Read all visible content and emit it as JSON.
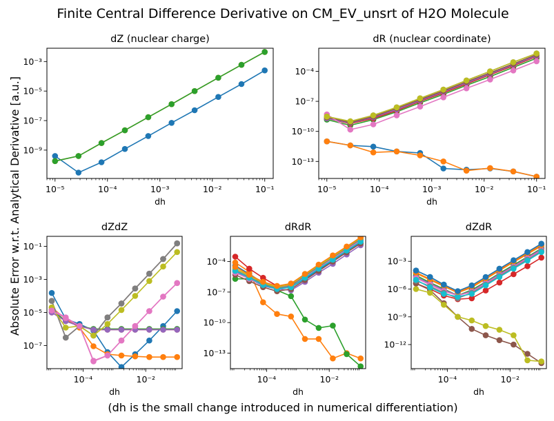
{
  "figure": {
    "suptitle": "Finite Central Difference Derivative on CM_EV_unsrt of H2O Molecule",
    "ylabel": "Absolute Error w.r.t. Analytical Derivative [a.u.]",
    "caption": "(dh is the small change introduced in numerical differentiation)"
  },
  "chart_data": [
    {
      "type": "line",
      "title": "dZ (nuclear charge)",
      "xlabel": "dh",
      "xscale": "log",
      "yscale": "log",
      "xlim": [
        7e-06,
        0.145
      ],
      "ylim": [
        1.2e-11,
        0.008
      ],
      "xticks": [
        1e-05,
        0.0001,
        0.001,
        0.01,
        0.1
      ],
      "xticklabels": [
        "10⁻⁵",
        "10⁻⁴",
        "10⁻³",
        "10⁻²",
        "10⁻¹"
      ],
      "yticks": [
        1e-09,
        1e-07,
        1e-05,
        0.001
      ],
      "yticklabels": [
        "10⁻⁹",
        "10⁻⁷",
        "10⁻⁵",
        "10⁻³"
      ],
      "x": [
        1e-05,
        2.8e-05,
        7.7e-05,
        0.000215,
        0.0006,
        0.00167,
        0.0046,
        0.013,
        0.036,
        0.1
      ],
      "series": [
        {
          "color": "#1f77b4",
          "values": [
            4e-10,
            3e-11,
            1.5e-10,
            1.2e-09,
            9e-09,
            7e-08,
            5e-07,
            4e-06,
            3e-05,
            0.00025
          ]
        },
        {
          "color": "#ff7f0e",
          "values": [
            1.8e-10,
            4e-10,
            3e-09,
            2.2e-08,
            1.7e-07,
            1.3e-06,
            1e-05,
            8e-05,
            0.0006,
            0.0045
          ]
        },
        {
          "color": "#2ca02c",
          "values": [
            1.8e-10,
            4e-10,
            3e-09,
            2.2e-08,
            1.7e-07,
            1.3e-06,
            1e-05,
            8e-05,
            0.0006,
            0.0045
          ]
        }
      ]
    },
    {
      "type": "line",
      "title": "dR (nuclear coordinate)",
      "xlabel": "dh",
      "xscale": "log",
      "yscale": "log",
      "xlim": [
        7e-06,
        0.145
      ],
      "ylim": [
        2e-15,
        0.02
      ],
      "xticks": [
        1e-05,
        0.0001,
        0.001,
        0.01,
        0.1
      ],
      "xticklabels": [
        "10⁻⁵",
        "10⁻⁴",
        "10⁻³",
        "10⁻²",
        "10⁻¹"
      ],
      "yticks": [
        1e-13,
        1e-10,
        1e-07,
        0.0001
      ],
      "yticklabels": [
        "10⁻¹³",
        "10⁻¹⁰",
        "10⁻⁷",
        "10⁻⁴"
      ],
      "x": [
        1e-05,
        2.8e-05,
        7.7e-05,
        0.000215,
        0.0006,
        0.00167,
        0.0046,
        0.013,
        0.036,
        0.1
      ],
      "series": [
        {
          "color": "#1f77b4",
          "values": [
            1e-11,
            4e-12,
            3e-12,
            1e-12,
            7e-13,
            2e-14,
            1.5e-14,
            2e-14,
            1e-14,
            3e-15
          ]
        },
        {
          "color": "#ff7f0e",
          "values": [
            1e-11,
            4e-12,
            8e-13,
            1e-12,
            4e-13,
            1e-13,
            1.2e-14,
            2.2e-14,
            1e-14,
            3e-15
          ]
        },
        {
          "color": "#2ca02c",
          "values": [
            1.5e-09,
            4e-10,
            1.5e-09,
            9e-09,
            7e-08,
            5e-07,
            4e-06,
            3e-05,
            0.00025,
            0.002
          ]
        },
        {
          "color": "#d62728",
          "values": [
            2e-09,
            6e-10,
            2e-09,
            1.2e-08,
            1e-07,
            7e-07,
            5.5e-06,
            4.5e-05,
            0.00035,
            0.003
          ]
        },
        {
          "color": "#9467bd",
          "values": [
            2e-09,
            7e-10,
            2.5e-09,
            1.5e-08,
            1.2e-07,
            9e-07,
            7e-06,
            5.5e-05,
            0.00045,
            0.0035
          ]
        },
        {
          "color": "#8c564b",
          "values": [
            2.5e-09,
            8e-10,
            3e-09,
            2e-08,
            1.5e-07,
            1.1e-06,
            9e-06,
            7e-05,
            0.00055,
            0.0045
          ]
        },
        {
          "color": "#e377c2",
          "values": [
            5e-09,
            1.5e-10,
            5e-10,
            4e-09,
            3e-08,
            2.5e-07,
            2e-06,
            1.5e-05,
            0.00012,
            0.001
          ]
        },
        {
          "color": "#7f7f7f",
          "values": [
            3e-09,
            1e-09,
            4e-09,
            2.5e-08,
            2e-07,
            1.5e-06,
            1.2e-05,
            0.0001,
            0.0008,
            0.006
          ]
        },
        {
          "color": "#bcbd22",
          "values": [
            3e-09,
            1e-09,
            4e-09,
            2.5e-08,
            2e-07,
            1.5e-06,
            1.2e-05,
            0.0001,
            0.0008,
            0.006
          ]
        }
      ]
    },
    {
      "type": "line",
      "title": "dZdZ",
      "xlabel": "dh",
      "xscale": "log",
      "yscale": "log",
      "xlim": [
        7e-06,
        0.145
      ],
      "ylim": [
        4e-09,
        0.4
      ],
      "xticks": [
        0.0001,
        0.01
      ],
      "xticklabels": [
        "10⁻⁴",
        "10⁻²"
      ],
      "yticks": [
        1e-07,
        1e-05,
        0.001,
        0.1
      ],
      "yticklabels": [
        "10⁻⁷",
        "10⁻⁵",
        "10⁻³",
        "10⁻¹"
      ],
      "x": [
        1e-05,
        2.8e-05,
        7.7e-05,
        0.000215,
        0.0006,
        0.00167,
        0.0046,
        0.013,
        0.036,
        0.1
      ],
      "series": [
        {
          "color": "#1f77b4",
          "values": [
            0.00015,
            4e-06,
            2e-06,
            8e-07,
            4e-08,
            5e-09,
            3e-08,
            2e-07,
            1.5e-06,
            1.2e-05
          ]
        },
        {
          "color": "#ff7f0e",
          "values": [
            2e-05,
            4e-06,
            1.2e-06,
            9e-08,
            3e-08,
            2.5e-08,
            2.2e-08,
            2e-08,
            2e-08,
            2e-08
          ]
        },
        {
          "color": "#2ca02c",
          "values": [
            1.5e-05,
            3e-06,
            1.5e-06,
            1e-06,
            1e-06,
            1e-06,
            1e-06,
            1e-06,
            1e-06,
            1e-06
          ]
        },
        {
          "color": "#d62728",
          "values": [
            1e-05,
            3e-06,
            1.5e-06,
            9e-07,
            9e-07,
            9e-07,
            9e-07,
            9e-07,
            9e-07,
            9e-07
          ]
        },
        {
          "color": "#9467bd",
          "values": [
            1e-05,
            3e-06,
            1.5e-06,
            9e-07,
            9e-07,
            9e-07,
            9e-07,
            9e-07,
            9e-07,
            9e-07
          ]
        },
        {
          "color": "#8c564b",
          "values": [
            5e-05,
            3e-07,
            1.5e-06,
            4e-07,
            5e-06,
            3.5e-05,
            0.00028,
            0.0022,
            0.017,
            0.15
          ]
        },
        {
          "color": "#e377c2",
          "values": [
            1.5e-05,
            5e-06,
            1.5e-06,
            1.2e-08,
            2.5e-08,
            2e-07,
            1.5e-06,
            1.2e-05,
            9e-05,
            0.0006
          ]
        },
        {
          "color": "#7f7f7f",
          "values": [
            5e-05,
            3e-07,
            1.5e-06,
            4e-07,
            5e-06,
            3.5e-05,
            0.00028,
            0.0022,
            0.017,
            0.15
          ]
        },
        {
          "color": "#bcbd22",
          "values": [
            2e-05,
            1.2e-06,
            1.5e-06,
            4e-07,
            2e-06,
            1.4e-05,
            0.0001,
            0.0008,
            0.006,
            0.045
          ]
        },
        {
          "color": "#e377c2",
          "values": [
            1.3e-05,
            4.5e-06,
            1.5e-06,
            1.1e-08,
            2.5e-08,
            2e-07,
            1.5e-06,
            1.2e-05,
            9e-05,
            0.0006
          ]
        }
      ]
    },
    {
      "type": "line",
      "title": "dRdR",
      "xlabel": "dh",
      "xscale": "log",
      "yscale": "log",
      "xlim": [
        7e-06,
        0.145
      ],
      "ylim": [
        3e-15,
        0.03
      ],
      "xticks": [
        0.0001,
        0.01
      ],
      "xticklabels": [
        "10⁻⁴",
        "10⁻²"
      ],
      "yticks": [
        1e-13,
        1e-10,
        1e-07,
        0.0001
      ],
      "yticklabels": [
        "10⁻¹³",
        "10⁻¹⁰",
        "10⁻⁷",
        "10⁻⁴"
      ],
      "x": [
        1e-05,
        2.8e-05,
        7.7e-05,
        0.000215,
        0.0006,
        0.00167,
        0.0046,
        0.013,
        0.036,
        0.1
      ],
      "series": [
        {
          "color": "#1f77b4",
          "values": [
            4e-05,
            6e-06,
            8e-07,
            2e-07,
            3e-07,
            2e-06,
            1.5e-05,
            0.00012,
            0.0009,
            0.007
          ]
        },
        {
          "color": "#ff7f0e",
          "values": [
            8e-05,
            1e-05,
            1e-08,
            7e-10,
            4e-10,
            2.5e-12,
            2.5e-12,
            3e-14,
            1e-13,
            3e-14
          ]
        },
        {
          "color": "#2ca02c",
          "values": [
            2e-06,
            2e-06,
            1e-06,
            1.5e-07,
            4e-08,
            2e-10,
            3e-11,
            5e-11,
            8e-14,
            5e-15
          ]
        },
        {
          "color": "#d62728",
          "values": [
            0.0003,
            2e-05,
            2.5e-06,
            4e-07,
            5e-07,
            3e-06,
            2.5e-05,
            0.0002,
            0.0015,
            0.012
          ]
        },
        {
          "color": "#9467bd",
          "values": [
            1e-05,
            2e-06,
            4e-07,
            2e-07,
            1.5e-07,
            1e-06,
            8e-06,
            6e-05,
            0.0005,
            0.004
          ]
        },
        {
          "color": "#8c564b",
          "values": [
            5e-06,
            1.2e-06,
            3e-07,
            1.2e-07,
            2e-07,
            1.5e-06,
            1.2e-05,
            0.0001,
            0.0008,
            0.006
          ]
        },
        {
          "color": "#e377c2",
          "values": [
            8e-06,
            2e-06,
            5e-07,
            3e-07,
            4e-07,
            3e-06,
            2.5e-05,
            0.0002,
            0.0015,
            0.012
          ]
        },
        {
          "color": "#7f7f7f",
          "values": [
            1.5e-05,
            3e-06,
            6e-07,
            2.5e-07,
            4e-07,
            4e-06,
            3e-05,
            0.00025,
            0.002,
            0.015
          ]
        },
        {
          "color": "#bcbd22",
          "values": [
            2e-05,
            4e-06,
            8e-07,
            3e-07,
            6e-07,
            5e-06,
            4e-05,
            0.0003,
            0.0025,
            0.02
          ]
        },
        {
          "color": "#17becf",
          "values": [
            1.2e-05,
            2.5e-06,
            5e-07,
            2e-07,
            3e-07,
            2.5e-06,
            2e-05,
            0.00015,
            0.0012,
            0.009
          ]
        },
        {
          "color": "#ff7f0e",
          "values": [
            3e-05,
            5e-06,
            1e-06,
            4e-07,
            7e-07,
            6e-06,
            5e-05,
            0.0004,
            0.003,
            0.024
          ]
        }
      ]
    },
    {
      "type": "line",
      "title": "dZdR",
      "xlabel": "dh",
      "xscale": "log",
      "yscale": "log",
      "xlim": [
        7e-06,
        0.145
      ],
      "ylim": [
        2.5e-15,
        0.5
      ],
      "xticks": [
        0.0001,
        0.01
      ],
      "xticklabels": [
        "10⁻⁴",
        "10⁻²"
      ],
      "yticks": [
        1e-12,
        1e-09,
        1e-06,
        0.001
      ],
      "yticklabels": [
        "10⁻¹²",
        "10⁻⁹",
        "10⁻⁶",
        "10⁻³"
      ],
      "x": [
        1e-05,
        2.8e-05,
        7.7e-05,
        0.000215,
        0.0006,
        0.00167,
        0.0046,
        0.013,
        0.036,
        0.1
      ],
      "series": [
        {
          "color": "#1f77b4",
          "values": [
            0.0001,
            2e-05,
            3e-06,
            5e-07,
            2e-06,
            1.5e-05,
            0.00012,
            0.001,
            0.008,
            0.06
          ]
        },
        {
          "color": "#ff7f0e",
          "values": [
            5e-05,
            1e-05,
            2e-06,
            4e-07,
            1.5e-06,
            1.2e-05,
            0.0001,
            0.0008,
            0.006,
            0.045
          ]
        },
        {
          "color": "#2ca02c",
          "values": [
            3e-05,
            5e-06,
            1e-06,
            2e-07,
            8e-07,
            6e-06,
            5e-05,
            0.0004,
            0.003,
            0.025
          ]
        },
        {
          "color": "#d62728",
          "values": [
            4e-06,
            1e-06,
            2e-07,
            8e-08,
            1e-07,
            7e-07,
            5e-06,
            4e-05,
            0.0003,
            0.0025
          ]
        },
        {
          "color": "#9467bd",
          "values": [
            2e-05,
            4e-06,
            8e-07,
            2e-07,
            6e-07,
            5e-06,
            4e-05,
            0.0003,
            0.0025,
            0.02
          ]
        },
        {
          "color": "#8c564b",
          "values": [
            4e-06,
            8e-07,
            3e-08,
            1e-09,
            5e-11,
            1e-11,
            3e-12,
            1e-12,
            1e-13,
            1e-14
          ]
        },
        {
          "color": "#e377c2",
          "values": [
            1.5e-05,
            3e-06,
            6e-07,
            2e-07,
            5e-07,
            4e-06,
            3e-05,
            0.00025,
            0.002,
            0.015
          ]
        },
        {
          "color": "#7f7f7f",
          "values": [
            8e-06,
            2e-06,
            4e-07,
            1e-07,
            4e-07,
            3e-06,
            2.5e-05,
            0.0002,
            0.0015,
            0.012
          ]
        },
        {
          "color": "#bcbd22",
          "values": [
            1e-06,
            4e-07,
            2e-08,
            1e-09,
            4e-10,
            1e-10,
            4e-11,
            1e-11,
            2e-14,
            1.5e-14
          ]
        },
        {
          "color": "#17becf",
          "values": [
            1e-05,
            1.5e-06,
            3e-07,
            1.5e-07,
            3e-07,
            2.5e-06,
            2e-05,
            0.00016,
            0.0012,
            0.01
          ]
        },
        {
          "color": "#ff7f0e",
          "values": [
            6e-05,
            1.2e-05,
            2.5e-06,
            5e-07,
            2e-06,
            1.5e-05,
            0.00012,
            0.001,
            0.008,
            0.06
          ]
        },
        {
          "color": "#1f77b4",
          "values": [
            0.0001,
            2e-05,
            3e-06,
            6e-07,
            2.5e-06,
            2e-05,
            0.00016,
            0.0013,
            0.01,
            0.08
          ]
        }
      ]
    }
  ]
}
